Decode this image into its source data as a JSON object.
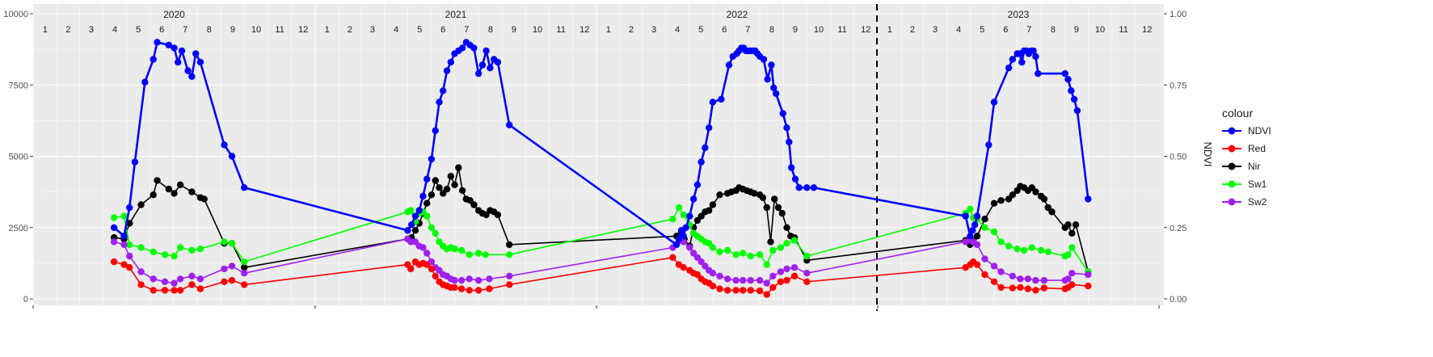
{
  "chart_data": {
    "type": "line",
    "title": "",
    "xlabel": "",
    "ylabel": "",
    "y2label": "NDVI",
    "ylim": [
      0,
      10000
    ],
    "y2lim": [
      0,
      1
    ],
    "yticks": [
      "0",
      "2500",
      "5000",
      "7500",
      "10000"
    ],
    "y2ticks": [
      "0.00",
      "0.25",
      "0.50",
      "0.75",
      "1.00"
    ],
    "years": [
      "2020",
      "2021",
      "2022",
      "2023"
    ],
    "months": [
      "1",
      "2",
      "3",
      "4",
      "5",
      "6",
      "7",
      "8",
      "9",
      "10",
      "11",
      "12"
    ],
    "xlim": [
      "2020-01-01",
      "2024-01-01"
    ],
    "vline": "2022-12-31",
    "grid": true,
    "legend": {
      "title": "colour",
      "position": "right",
      "entries": [
        "NDVI",
        "Red",
        "Nir",
        "Sw1",
        "Sw2"
      ]
    },
    "colors": {
      "NDVI": "#0000ff",
      "Red": "#ff0000",
      "Nir": "#000000",
      "Sw1": "#00ff00",
      "Sw2": "#a020f0"
    },
    "series": [
      {
        "name": "NDVI",
        "axis": "right",
        "x": [
          "2020-04-15",
          "2020-04-28",
          "2020-05-05",
          "2020-05-12",
          "2020-05-25",
          "2020-06-05",
          "2020-06-10",
          "2020-06-25",
          "2020-07-02",
          "2020-07-07",
          "2020-07-12",
          "2020-07-20",
          "2020-07-25",
          "2020-07-30",
          "2020-08-05",
          "2020-09-05",
          "2020-09-15",
          "2020-10-01",
          "2021-05-01",
          "2021-05-06",
          "2021-05-11",
          "2021-05-16",
          "2021-05-21",
          "2021-05-26",
          "2021-06-01",
          "2021-06-06",
          "2021-06-11",
          "2021-06-16",
          "2021-06-21",
          "2021-06-26",
          "2021-07-01",
          "2021-07-06",
          "2021-07-11",
          "2021-07-16",
          "2021-07-21",
          "2021-07-26",
          "2021-08-01",
          "2021-08-06",
          "2021-08-11",
          "2021-08-16",
          "2021-08-21",
          "2021-08-26",
          "2021-09-10",
          "2022-04-15",
          "2022-04-18",
          "2022-04-21",
          "2022-04-24",
          "2022-04-27",
          "2022-05-02",
          "2022-05-07",
          "2022-05-12",
          "2022-05-17",
          "2022-05-22",
          "2022-05-27",
          "2022-06-01",
          "2022-06-12",
          "2022-06-22",
          "2022-06-27",
          "2022-07-02",
          "2022-07-05",
          "2022-07-08",
          "2022-07-11",
          "2022-07-14",
          "2022-07-17",
          "2022-07-20",
          "2022-07-23",
          "2022-07-26",
          "2022-07-29",
          "2022-08-01",
          "2022-08-06",
          "2022-08-11",
          "2022-08-16",
          "2022-08-19",
          "2022-08-22",
          "2022-08-31",
          "2022-09-05",
          "2022-09-08",
          "2022-09-11",
          "2022-09-16",
          "2022-09-21",
          "2022-10-01",
          "2022-10-10",
          "2023-04-25",
          "2023-05-01",
          "2023-05-04",
          "2023-05-07",
          "2023-05-10",
          "2023-05-25",
          "2023-06-01",
          "2023-06-20",
          "2023-06-25",
          "2023-07-01",
          "2023-07-04",
          "2023-07-07",
          "2023-07-10",
          "2023-07-13",
          "2023-07-16",
          "2023-07-19",
          "2023-07-22",
          "2023-07-25",
          "2023-07-28",
          "2023-09-01",
          "2023-09-05",
          "2023-09-09",
          "2023-09-13",
          "2023-09-17",
          "2023-10-01"
        ],
        "values": [
          0.25,
          0.22,
          0.32,
          0.48,
          0.76,
          0.84,
          0.9,
          0.89,
          0.88,
          0.83,
          0.87,
          0.8,
          0.78,
          0.86,
          0.83,
          0.54,
          0.5,
          0.39,
          0.24,
          0.26,
          0.29,
          0.31,
          0.36,
          0.42,
          0.49,
          0.59,
          0.69,
          0.73,
          0.8,
          0.83,
          0.86,
          0.87,
          0.88,
          0.9,
          0.89,
          0.88,
          0.79,
          0.82,
          0.87,
          0.81,
          0.84,
          0.83,
          0.61,
          0.19,
          0.21,
          0.24,
          0.22,
          0.25,
          0.29,
          0.35,
          0.4,
          0.48,
          0.53,
          0.6,
          0.69,
          0.7,
          0.82,
          0.85,
          0.86,
          0.87,
          0.88,
          0.88,
          0.87,
          0.87,
          0.87,
          0.87,
          0.87,
          0.86,
          0.85,
          0.84,
          0.77,
          0.82,
          0.74,
          0.72,
          0.65,
          0.6,
          0.55,
          0.46,
          0.42,
          0.39,
          0.39,
          0.39,
          0.29,
          0.22,
          0.24,
          0.26,
          0.29,
          0.54,
          0.69,
          0.81,
          0.84,
          0.86,
          0.86,
          0.83,
          0.87,
          0.87,
          0.86,
          0.87,
          0.87,
          0.85,
          0.79,
          0.79,
          0.77,
          0.73,
          0.7,
          0.66,
          0.35
        ]
      },
      {
        "name": "Red",
        "axis": "left",
        "x": [
          "2020-04-15",
          "2020-04-28",
          "2020-05-05",
          "2020-05-20",
          "2020-06-05",
          "2020-06-20",
          "2020-07-02",
          "2020-07-10",
          "2020-07-25",
          "2020-08-05",
          "2020-09-05",
          "2020-09-15",
          "2020-10-01",
          "2021-05-01",
          "2021-05-05",
          "2021-05-11",
          "2021-05-16",
          "2021-05-21",
          "2021-05-26",
          "2021-06-01",
          "2021-06-06",
          "2021-06-11",
          "2021-06-16",
          "2021-06-21",
          "2021-06-26",
          "2021-07-01",
          "2021-07-10",
          "2021-07-20",
          "2021-08-01",
          "2021-08-15",
          "2021-09-10",
          "2022-04-10",
          "2022-04-18",
          "2022-04-24",
          "2022-05-02",
          "2022-05-07",
          "2022-05-12",
          "2022-05-17",
          "2022-05-22",
          "2022-05-27",
          "2022-06-01",
          "2022-06-10",
          "2022-06-20",
          "2022-07-01",
          "2022-07-10",
          "2022-07-20",
          "2022-08-01",
          "2022-08-10",
          "2022-08-18",
          "2022-08-28",
          "2022-09-05",
          "2022-09-15",
          "2022-10-01",
          "2023-04-25",
          "2023-05-01",
          "2023-05-05",
          "2023-05-10",
          "2023-05-20",
          "2023-06-01",
          "2023-06-10",
          "2023-06-25",
          "2023-07-05",
          "2023-07-15",
          "2023-07-25",
          "2023-08-05",
          "2023-09-01",
          "2023-09-05",
          "2023-09-10",
          "2023-10-01"
        ],
        "values": [
          1300,
          1200,
          1100,
          500,
          300,
          300,
          300,
          300,
          500,
          350,
          600,
          650,
          500,
          1200,
          1050,
          1300,
          1200,
          1250,
          1200,
          1050,
          800,
          600,
          500,
          450,
          400,
          400,
          350,
          300,
          300,
          350,
          500,
          1450,
          1200,
          1100,
          1000,
          900,
          850,
          700,
          600,
          550,
          450,
          350,
          300,
          300,
          300,
          300,
          280,
          150,
          400,
          600,
          650,
          800,
          600,
          1100,
          1200,
          1300,
          1200,
          850,
          600,
          400,
          380,
          400,
          350,
          300,
          380,
          350,
          400,
          500,
          450
        ]
      },
      {
        "name": "Nir",
        "axis": "left",
        "x": [
          "2020-04-15",
          "2020-04-28",
          "2020-05-05",
          "2020-05-20",
          "2020-06-05",
          "2020-06-10",
          "2020-06-25",
          "2020-07-02",
          "2020-07-10",
          "2020-07-25",
          "2020-08-05",
          "2020-08-10",
          "2020-09-05",
          "2020-09-15",
          "2020-10-01",
          "2021-05-01",
          "2021-05-06",
          "2021-05-11",
          "2021-05-16",
          "2021-05-21",
          "2021-05-26",
          "2021-06-01",
          "2021-06-06",
          "2021-06-11",
          "2021-06-16",
          "2021-06-21",
          "2021-06-26",
          "2021-07-01",
          "2021-07-06",
          "2021-07-11",
          "2021-07-16",
          "2021-07-21",
          "2021-07-26",
          "2021-08-01",
          "2021-08-06",
          "2021-08-11",
          "2021-08-16",
          "2021-08-21",
          "2021-08-26",
          "2021-09-10",
          "2022-04-15",
          "2022-04-20",
          "2022-04-25",
          "2022-05-02",
          "2022-05-07",
          "2022-05-12",
          "2022-05-17",
          "2022-05-22",
          "2022-05-27",
          "2022-06-01",
          "2022-06-10",
          "2022-06-20",
          "2022-06-25",
          "2022-07-01",
          "2022-07-05",
          "2022-07-10",
          "2022-07-15",
          "2022-07-20",
          "2022-07-25",
          "2022-08-01",
          "2022-08-05",
          "2022-08-10",
          "2022-08-15",
          "2022-08-20",
          "2022-08-25",
          "2022-08-30",
          "2022-09-05",
          "2022-09-10",
          "2022-09-15",
          "2022-10-01",
          "2023-04-25",
          "2023-05-01",
          "2023-05-05",
          "2023-05-10",
          "2023-05-20",
          "2023-06-01",
          "2023-06-10",
          "2023-06-20",
          "2023-06-25",
          "2023-07-01",
          "2023-07-05",
          "2023-07-10",
          "2023-07-15",
          "2023-07-20",
          "2023-07-25",
          "2023-08-01",
          "2023-08-05",
          "2023-08-10",
          "2023-08-15",
          "2023-09-01",
          "2023-09-05",
          "2023-09-10",
          "2023-09-15",
          "2023-10-01"
        ],
        "values": [
          2150,
          2100,
          2650,
          3300,
          3650,
          4150,
          3850,
          3700,
          4000,
          3750,
          3550,
          3500,
          1950,
          1950,
          1100,
          2100,
          2150,
          2400,
          2650,
          3000,
          3350,
          3650,
          4150,
          3900,
          3700,
          3850,
          4300,
          4000,
          4600,
          3800,
          3500,
          3450,
          3300,
          3100,
          3000,
          2950,
          3100,
          3050,
          2950,
          1900,
          2200,
          2250,
          2100,
          1850,
          2500,
          2750,
          2900,
          3050,
          3100,
          3300,
          3650,
          3700,
          3750,
          3800,
          3900,
          3850,
          3800,
          3750,
          3700,
          3650,
          3550,
          3200,
          2000,
          3500,
          3200,
          3000,
          2500,
          2200,
          2150,
          1350,
          2050,
          1900,
          2050,
          2200,
          2800,
          3350,
          3450,
          3500,
          3650,
          3800,
          3950,
          3900,
          3800,
          3900,
          3750,
          3600,
          3500,
          3200,
          3050,
          2500,
          2600,
          2300,
          2600,
          950
        ]
      },
      {
        "name": "Sw1",
        "axis": "left",
        "x": [
          "2020-04-15",
          "2020-04-28",
          "2020-05-05",
          "2020-05-20",
          "2020-06-05",
          "2020-06-20",
          "2020-07-02",
          "2020-07-10",
          "2020-07-25",
          "2020-08-05",
          "2020-09-05",
          "2020-09-15",
          "2020-10-01",
          "2021-05-01",
          "2021-05-05",
          "2021-05-11",
          "2021-05-16",
          "2021-05-21",
          "2021-05-26",
          "2021-06-01",
          "2021-06-06",
          "2021-06-11",
          "2021-06-16",
          "2021-06-21",
          "2021-06-26",
          "2021-07-01",
          "2021-07-10",
          "2021-07-20",
          "2021-08-01",
          "2021-08-10",
          "2021-09-10",
          "2022-04-10",
          "2022-04-18",
          "2022-04-24",
          "2022-05-02",
          "2022-05-07",
          "2022-05-12",
          "2022-05-17",
          "2022-05-22",
          "2022-05-27",
          "2022-06-01",
          "2022-06-10",
          "2022-06-20",
          "2022-07-01",
          "2022-07-10",
          "2022-07-20",
          "2022-08-01",
          "2022-08-10",
          "2022-08-18",
          "2022-08-28",
          "2022-09-05",
          "2022-09-15",
          "2022-10-01",
          "2023-04-25",
          "2023-05-01",
          "2023-05-05",
          "2023-05-10",
          "2023-05-20",
          "2023-06-01",
          "2023-06-10",
          "2023-06-20",
          "2023-07-01",
          "2023-07-10",
          "2023-07-20",
          "2023-08-01",
          "2023-08-10",
          "2023-09-01",
          "2023-09-05",
          "2023-09-10",
          "2023-10-01"
        ],
        "values": [
          2850,
          2900,
          1900,
          1800,
          1650,
          1550,
          1500,
          1800,
          1700,
          1750,
          2000,
          1950,
          1300,
          3050,
          3100,
          2700,
          3000,
          3050,
          2900,
          2500,
          2300,
          2000,
          1850,
          1750,
          1800,
          1750,
          1700,
          1550,
          1600,
          1550,
          1550,
          2800,
          3200,
          2950,
          2600,
          2300,
          2200,
          2100,
          2000,
          1950,
          1800,
          1650,
          1700,
          1550,
          1600,
          1500,
          1550,
          1200,
          1700,
          1800,
          1950,
          2050,
          1500,
          3000,
          3150,
          2850,
          2800,
          2500,
          2350,
          2000,
          1850,
          1750,
          1700,
          1800,
          1700,
          1650,
          1500,
          1550,
          1800,
          950
        ]
      },
      {
        "name": "Sw2",
        "axis": "left",
        "x": [
          "2020-04-15",
          "2020-04-28",
          "2020-05-05",
          "2020-05-20",
          "2020-06-05",
          "2020-06-20",
          "2020-07-02",
          "2020-07-10",
          "2020-07-25",
          "2020-08-05",
          "2020-09-05",
          "2020-09-15",
          "2020-10-01",
          "2021-05-01",
          "2021-05-05",
          "2021-05-11",
          "2021-05-16",
          "2021-05-21",
          "2021-05-26",
          "2021-06-01",
          "2021-06-06",
          "2021-06-11",
          "2021-06-16",
          "2021-06-21",
          "2021-06-26",
          "2021-07-01",
          "2021-07-10",
          "2021-07-20",
          "2021-08-01",
          "2021-08-15",
          "2021-09-10",
          "2022-04-10",
          "2022-04-18",
          "2022-04-24",
          "2022-05-02",
          "2022-05-07",
          "2022-05-12",
          "2022-05-17",
          "2022-05-22",
          "2022-05-27",
          "2022-06-01",
          "2022-06-10",
          "2022-06-20",
          "2022-07-01",
          "2022-07-10",
          "2022-07-20",
          "2022-08-01",
          "2022-08-10",
          "2022-08-18",
          "2022-08-28",
          "2022-09-05",
          "2022-09-15",
          "2022-10-01",
          "2023-04-25",
          "2023-05-01",
          "2023-05-05",
          "2023-05-10",
          "2023-05-20",
          "2023-06-01",
          "2023-06-10",
          "2023-06-25",
          "2023-07-05",
          "2023-07-15",
          "2023-07-25",
          "2023-08-05",
          "2023-09-01",
          "2023-09-05",
          "2023-09-10",
          "2023-10-01"
        ],
        "values": [
          2000,
          1900,
          1500,
          950,
          700,
          600,
          550,
          700,
          800,
          700,
          1050,
          1150,
          900,
          2100,
          2000,
          2000,
          1850,
          1800,
          1600,
          1300,
          1100,
          1000,
          850,
          800,
          700,
          650,
          650,
          700,
          650,
          700,
          800,
          1800,
          2050,
          2000,
          1800,
          1600,
          1450,
          1300,
          1150,
          1000,
          900,
          800,
          700,
          650,
          650,
          650,
          650,
          550,
          800,
          950,
          1050,
          1100,
          900,
          2000,
          2050,
          2000,
          1900,
          1400,
          1150,
          950,
          800,
          700,
          700,
          650,
          650,
          650,
          700,
          900,
          850
        ]
      }
    ]
  }
}
